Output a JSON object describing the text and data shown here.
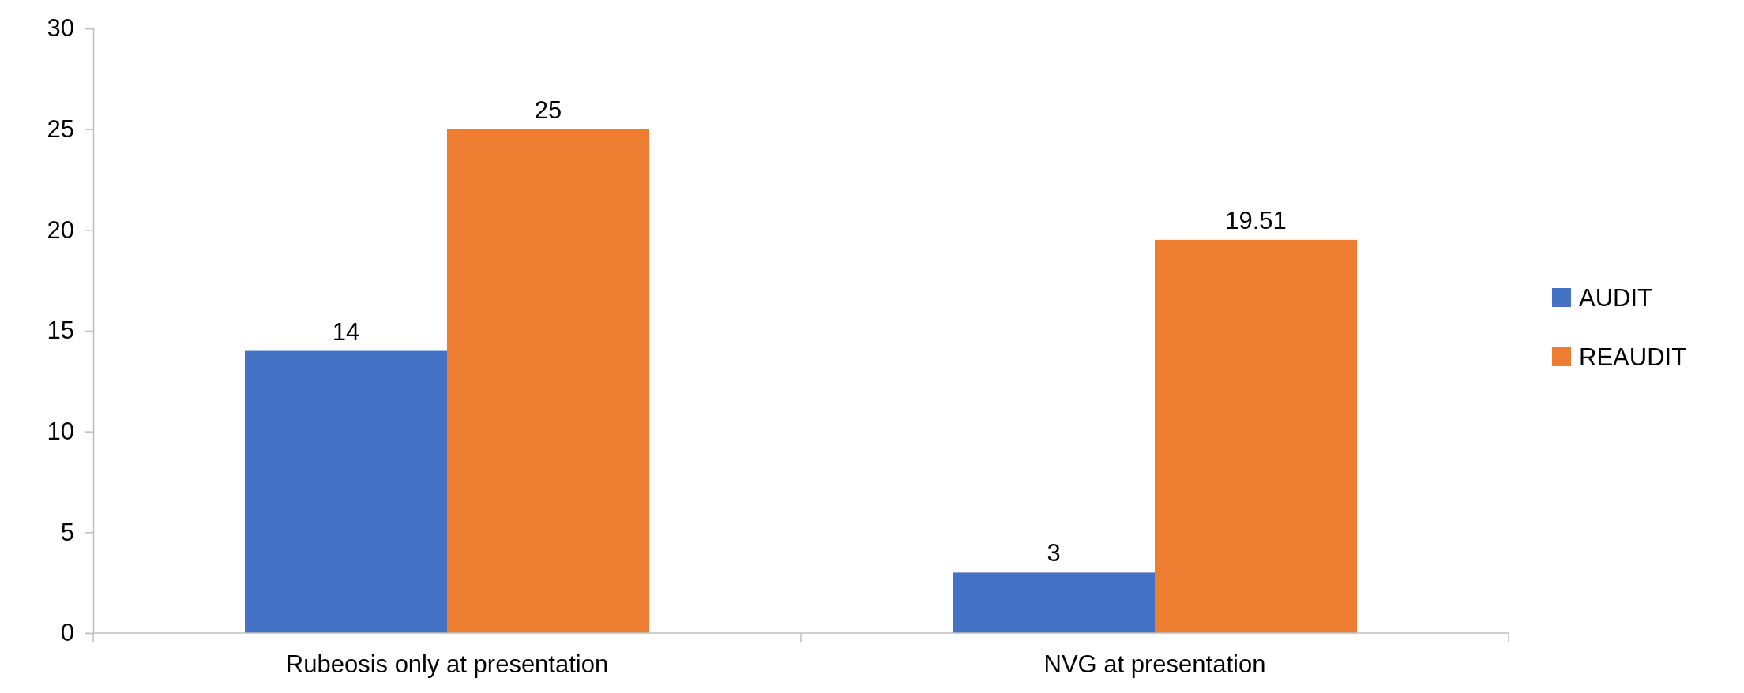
{
  "chart_data": {
    "type": "bar",
    "categories": [
      "Rubeosis only at presentation",
      "NVG at presentation"
    ],
    "series": [
      {
        "name": "AUDIT",
        "color": "#4472c4",
        "values": [
          14,
          3
        ]
      },
      {
        "name": "REAUDIT",
        "color": "#ed7d31",
        "values": [
          25,
          19.51
        ]
      }
    ],
    "ylim": [
      0,
      30
    ],
    "yticks": [
      0,
      5,
      10,
      15,
      20,
      25,
      30
    ],
    "data_labels": true,
    "legend": "right",
    "grid": false
  }
}
